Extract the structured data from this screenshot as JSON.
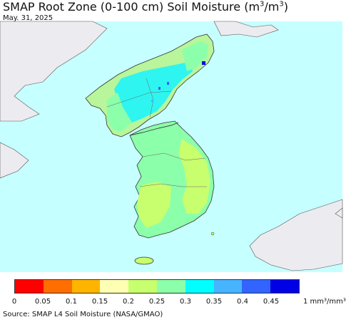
{
  "header": {
    "title_main": "SMAP Root Zone (0-100 cm) Soil Moisture (m",
    "title_sup1": "3",
    "title_mid": "/m",
    "title_sup2": "3",
    "title_end": ")",
    "date": "May. 31, 2025"
  },
  "legend": {
    "colors": [
      "#ff0000",
      "#ff6e00",
      "#ffb400",
      "#ffffb4",
      "#c8ff6e",
      "#8cffaa",
      "#00ffff",
      "#46b4ff",
      "#3264ff",
      "#0000e6"
    ],
    "ticks": [
      "0",
      "0.05",
      "0.1",
      "0.15",
      "0.2",
      "0.25",
      "0.3",
      "0.35",
      "0.4",
      "0.45"
    ],
    "unit": "1 mm³/mm³"
  },
  "source": "Source: SMAP L4 Soil Moisture (NASA/GMAO)",
  "map_colors": {
    "sea": "#c6ffff",
    "foreign_land": "#ecebf0",
    "border": "#333333"
  }
}
